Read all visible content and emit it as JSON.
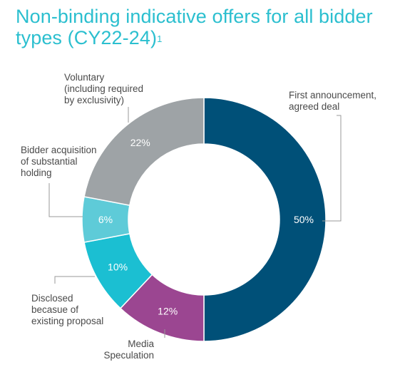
{
  "chart_data": {
    "type": "pie",
    "title": "Non-binding indicative offers for all bidder types (CY22-24)",
    "title_footnote": "1",
    "categories": [
      "First announcement, agreed deal",
      "Media Speculation",
      "Disclosed becasue of existing proposal",
      "Bidder acquisition of substantial holding",
      "Voluntary (including required by exclusivity)"
    ],
    "values": [
      50,
      12,
      10,
      6,
      22
    ],
    "value_labels": [
      "50%",
      "12%",
      "10%",
      "6%",
      "22%"
    ],
    "colors": [
      "#005078",
      "#9b4691",
      "#1bbfd2",
      "#5ecbd8",
      "#9ea3a6"
    ],
    "label_lines": [
      [
        "First announcement,",
        "agreed deal"
      ],
      [
        "Media",
        "Speculation"
      ],
      [
        "Disclosed",
        "becasue of",
        "existing proposal"
      ],
      [
        "Bidder acquisition",
        "of substantial",
        "holding"
      ],
      [
        "Voluntary",
        "(including required",
        "by exclusivity)"
      ]
    ],
    "donut": true,
    "legend": "none"
  }
}
